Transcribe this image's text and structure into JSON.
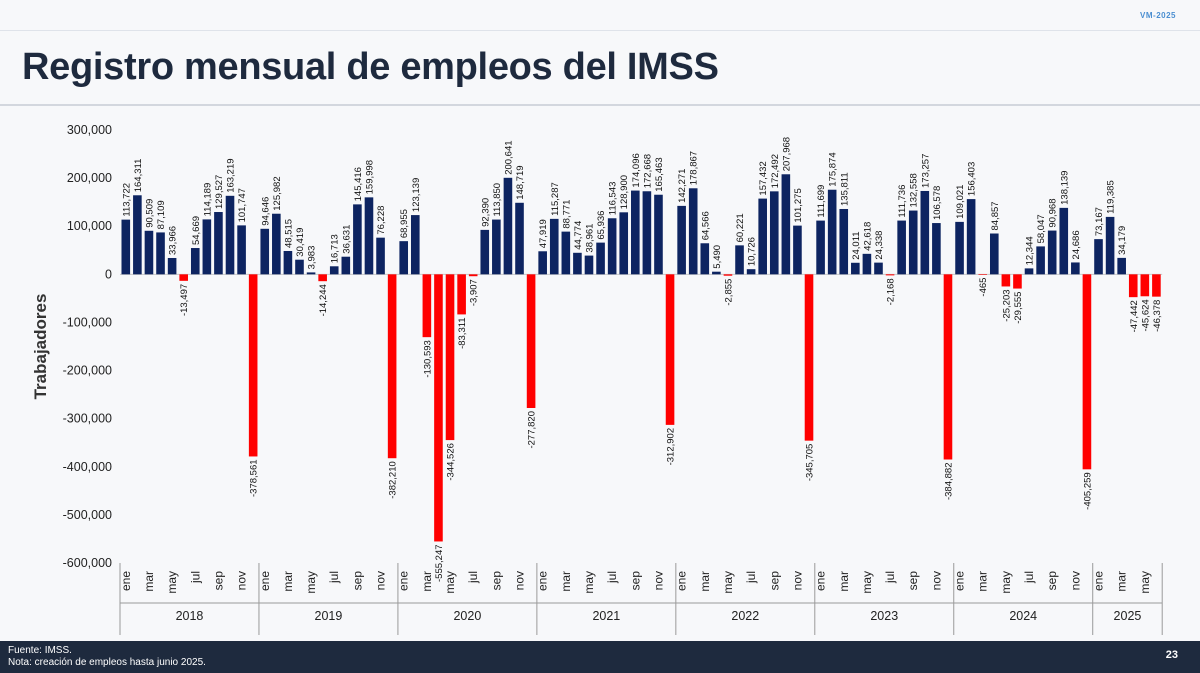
{
  "header": {
    "tag": "VM-2025",
    "title": "Registro mensual de empleos del IMSS"
  },
  "footer": {
    "source": "Fuente: IMSS.",
    "note": "Nota: creación de empleos hasta junio 2025.",
    "page_number": "23"
  },
  "colors": {
    "positive": "#0d2461",
    "negative": "#ff0000",
    "title": "#1e2a3e",
    "footer_bg": "#1e2a3e"
  },
  "chart_data": {
    "type": "bar",
    "title": "",
    "ylabel": "Trabajadores",
    "xlabel": "",
    "ylim": [
      -600000,
      300000
    ],
    "yticks": [
      300000,
      200000,
      100000,
      0,
      -100000,
      -200000,
      -300000,
      -400000,
      -500000,
      -600000
    ],
    "ytick_labels": [
      "300,000",
      "200,000",
      "100,000",
      "0",
      "-100,000",
      "-200,000",
      "-300,000",
      "-400,000",
      "-500,000",
      "-600,000"
    ],
    "grid": false,
    "legend": "none",
    "month_tick_labels": [
      "ene",
      "",
      "mar",
      "",
      "may",
      "",
      "jul",
      "",
      "sep",
      "",
      "nov",
      ""
    ],
    "years": [
      {
        "year": "2018",
        "values": [
          113722,
          164311,
          90509,
          87109,
          33966,
          -13497,
          54669,
          114189,
          129527,
          163219,
          101747,
          -378561
        ]
      },
      {
        "year": "2019",
        "values": [
          94646,
          125982,
          48515,
          30419,
          3983,
          -14244,
          16713,
          36631,
          145416,
          159998,
          76228,
          -382210
        ]
      },
      {
        "year": "2020",
        "values": [
          68955,
          123139,
          -130593,
          -555247,
          -344526,
          -83311,
          -3907,
          92390,
          113850,
          200641,
          148719,
          -277820
        ]
      },
      {
        "year": "2021",
        "values": [
          47919,
          115287,
          88771,
          44774,
          38961,
          65936,
          116543,
          128900,
          174096,
          172668,
          165463,
          -312902
        ]
      },
      {
        "year": "2022",
        "values": [
          142271,
          178867,
          64566,
          5490,
          -2855,
          60221,
          10726,
          157432,
          172492,
          207968,
          101275,
          -345705
        ]
      },
      {
        "year": "2023",
        "values": [
          111699,
          175874,
          135811,
          24011,
          42618,
          24338,
          -2168,
          111736,
          132558,
          173257,
          106578,
          -384882
        ]
      },
      {
        "year": "2024",
        "values": [
          109021,
          156403,
          -465,
          84857,
          -25203,
          -29555,
          12344,
          58047,
          90968,
          138139,
          24686,
          -405259
        ]
      },
      {
        "year": "2025",
        "values": [
          73167,
          119385,
          34179,
          -47442,
          -45624,
          -46378
        ]
      }
    ]
  }
}
